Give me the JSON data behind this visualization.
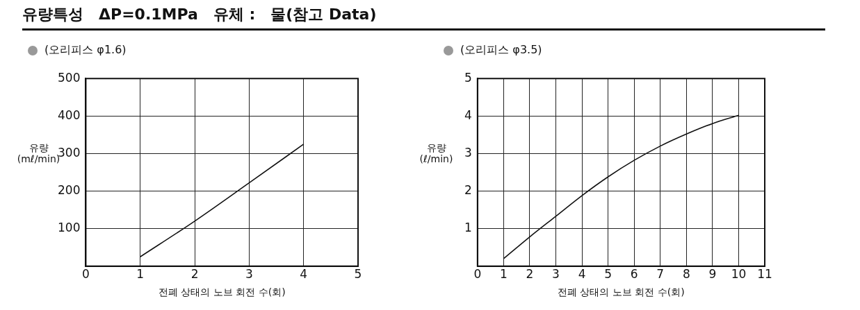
{
  "chart_data": [
    {
      "type": "line",
      "title": "유량특성　ΔP=0.1MPa　유체 :　물(참고 Data)",
      "subtitle": "(오리피스 φ1.6)",
      "xlabel": "전폐 상태의 노브 회전 수(회)",
      "ylabel": "유량 (mℓ/min)",
      "x": [
        1,
        2,
        3,
        4
      ],
      "series": [
        {
          "color": "#111111",
          "values": [
            25,
            120,
            222,
            325
          ]
        }
      ],
      "xlim": [
        0,
        5
      ],
      "xticks": [
        0,
        1,
        2,
        3,
        4,
        5
      ],
      "ylim": [
        0,
        500
      ],
      "yticks": [
        {
          "value": 0,
          "label": null
        },
        100,
        200,
        300,
        400,
        500
      ],
      "grid": true,
      "marker": "none",
      "line_style": "solid"
    },
    {
      "type": "line",
      "subtitle": "(오리피스 φ3.5)",
      "xlabel": "전폐 상태의 노브 회전 수(회)",
      "ylabel": "유량 (ℓ/min)",
      "x": [
        1,
        2,
        3,
        4,
        5,
        6,
        7,
        8,
        9,
        10
      ],
      "series": [
        {
          "color": "#111111",
          "values": [
            0.2,
            0.78,
            1.33,
            1.88,
            2.38,
            2.82,
            3.2,
            3.52,
            3.8,
            4.02
          ]
        }
      ],
      "xlim": [
        0,
        11
      ],
      "xticks": [
        0,
        1,
        2,
        3,
        4,
        5,
        6,
        7,
        8,
        9,
        10,
        11
      ],
      "ylim": [
        0,
        5
      ],
      "yticks": [
        {
          "value": 0,
          "label": null
        },
        1,
        2,
        3,
        4,
        5
      ],
      "grid": true,
      "marker": "none",
      "line_style": "solid"
    }
  ]
}
